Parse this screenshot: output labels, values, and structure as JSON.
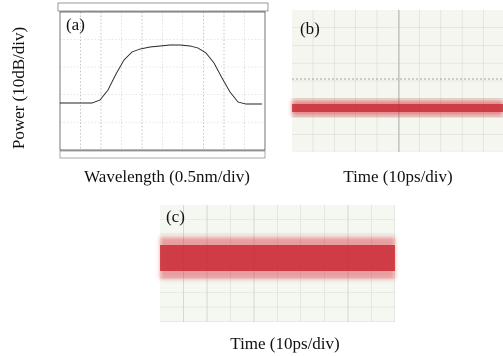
{
  "panels": [
    {
      "label": "(a)",
      "x_label": "Wavelength (0.5nm/div)",
      "y_label": "Power (10dB/div)"
    },
    {
      "label": "(b)",
      "x_label": "Time (10ps/div)"
    },
    {
      "label": "(c)",
      "x_label": "Time (10ps/div)"
    }
  ]
}
